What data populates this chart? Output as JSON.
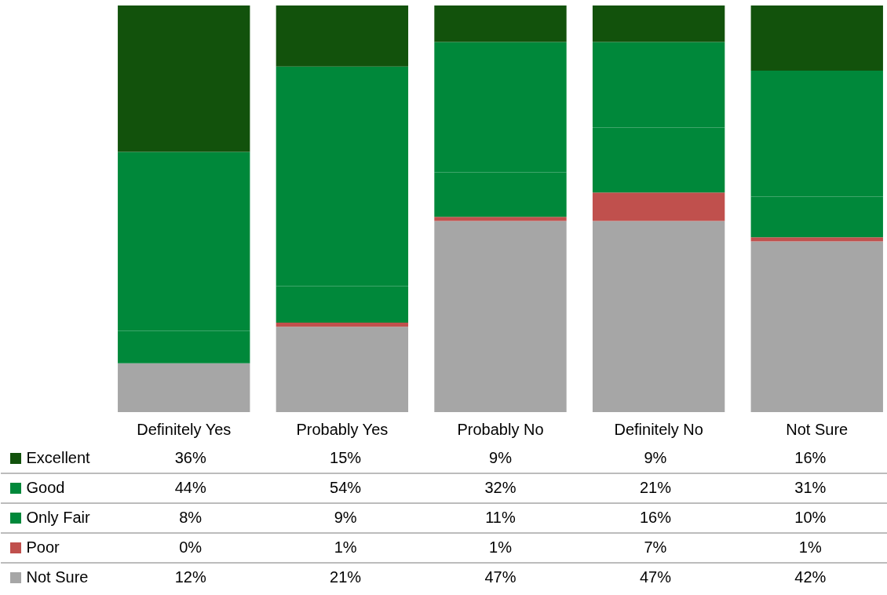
{
  "chart_data": {
    "type": "bar",
    "stacked": true,
    "categories": [
      "Definitely Yes",
      "Probably Yes",
      "Probably No",
      "Definitely No",
      "Not Sure"
    ],
    "ylim": [
      0,
      100
    ],
    "tick_labels": "x",
    "legend": "bottom left",
    "series": [
      {
        "name": "Not Sure",
        "color": "#a6a6a6",
        "values": [
          12,
          21,
          47,
          47,
          42
        ],
        "value_labels": [
          "12%",
          "21%",
          "47%",
          "47%",
          "42%"
        ]
      },
      {
        "name": "Poor",
        "color": "#c0504d",
        "values": [
          0,
          1,
          1,
          7,
          1
        ],
        "value_labels": [
          "0%",
          "1%",
          "1%",
          "7%",
          "1%"
        ]
      },
      {
        "name": "Only Fair",
        "color": "#00883a",
        "values": [
          8,
          9,
          11,
          16,
          10
        ],
        "value_labels": [
          "8%",
          "9%",
          "11%",
          "16%",
          "10%"
        ]
      },
      {
        "name": "Good",
        "color": "#00883a",
        "values": [
          44,
          54,
          32,
          21,
          31
        ],
        "value_labels": [
          "44%",
          "54%",
          "32%",
          "21%",
          "31%"
        ]
      },
      {
        "name": "Excellent",
        "color": "#12520c",
        "values": [
          36,
          15,
          9,
          9,
          16
        ],
        "value_labels": [
          "36%",
          "15%",
          "9%",
          "9%",
          "16%"
        ]
      }
    ]
  }
}
